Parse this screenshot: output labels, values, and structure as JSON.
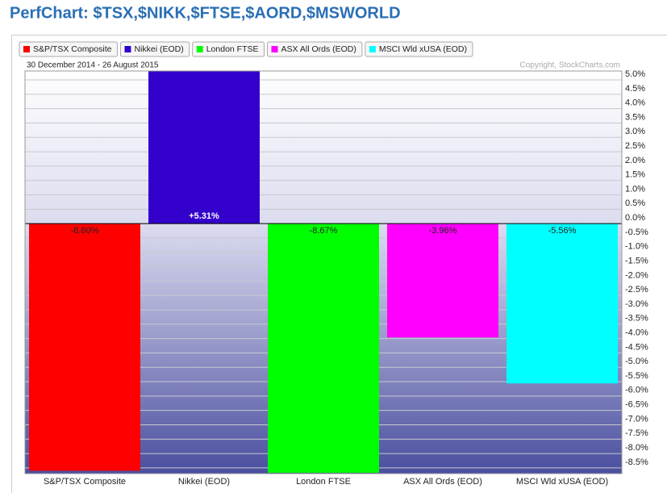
{
  "chart_data": {
    "type": "bar",
    "title": "PerfChart: $TSX,$NIKK,$FTSE,$AORD,$MSWORLD",
    "date_range": "30 December 2014 - 26 August 2015",
    "copyright": "Copyright, StockCharts.com",
    "categories": [
      "S&P/TSX Composite",
      "Nikkei (EOD)",
      "London FTSE",
      "ASX All Ords (EOD)",
      "MSCI Wld xUSA (EOD)"
    ],
    "values": [
      -8.6,
      5.31,
      -8.67,
      -3.96,
      -5.56
    ],
    "value_labels": [
      "-8.60%",
      "+5.31%",
      "-8.67%",
      "-3.96%",
      "-5.56%"
    ],
    "colors": [
      "#ff0000",
      "#3300cc",
      "#00ff00",
      "#ff00ff",
      "#00ffff"
    ],
    "ylim": [
      -8.7,
      5.31
    ],
    "yticks": [
      {
        "value": 5.0,
        "label": "5.0%"
      },
      {
        "value": 4.5,
        "label": "4.5%"
      },
      {
        "value": 4.0,
        "label": "4.0%"
      },
      {
        "value": 3.5,
        "label": "3.5%"
      },
      {
        "value": 3.0,
        "label": "3.0%"
      },
      {
        "value": 2.5,
        "label": "2.5%"
      },
      {
        "value": 2.0,
        "label": "2.0%"
      },
      {
        "value": 1.5,
        "label": "1.5%"
      },
      {
        "value": 1.0,
        "label": "1.0%"
      },
      {
        "value": 0.5,
        "label": "0.5%"
      },
      {
        "value": 0,
        "label": "0.0%"
      },
      {
        "value": -0.5,
        "label": "-0.5%"
      },
      {
        "value": -1.0,
        "label": "-1.0%"
      },
      {
        "value": -1.5,
        "label": "-1.5%"
      },
      {
        "value": -2.0,
        "label": "-2.0%"
      },
      {
        "value": -2.5,
        "label": "-2.5%"
      },
      {
        "value": -3.0,
        "label": "-3.0%"
      },
      {
        "value": -3.5,
        "label": "-3.5%"
      },
      {
        "value": -4.0,
        "label": "-4.0%"
      },
      {
        "value": -4.5,
        "label": "-4.5%"
      },
      {
        "value": -5.0,
        "label": "-5.0%"
      },
      {
        "value": -5.5,
        "label": "-5.5%"
      },
      {
        "value": -6.0,
        "label": "-6.0%"
      },
      {
        "value": -6.5,
        "label": "-6.5%"
      },
      {
        "value": -7.0,
        "label": "-7.0%"
      },
      {
        "value": -7.5,
        "label": "-7.5%"
      },
      {
        "value": -8.0,
        "label": "-8.0%"
      },
      {
        "value": -8.5,
        "label": "-8.5%"
      }
    ],
    "grid": true
  }
}
